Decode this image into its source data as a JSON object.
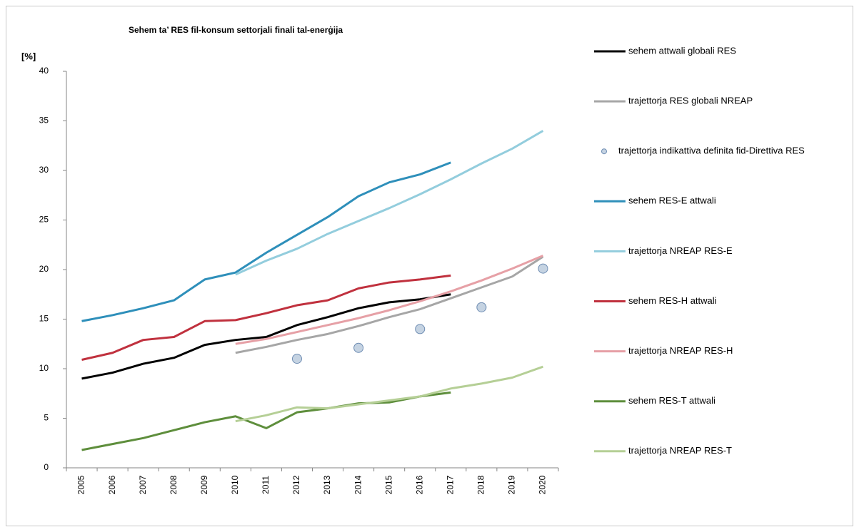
{
  "chart_data": {
    "type": "line",
    "title": "Sehem ta’ RES fil-konsum settorjali finali tal-enerġija",
    "y_label": "[%]",
    "categories": [
      "2005",
      "2006",
      "2007",
      "2008",
      "2009",
      "2010",
      "2011",
      "2012",
      "2013",
      "2014",
      "2015",
      "2016",
      "2017",
      "2018",
      "2019",
      "2020"
    ],
    "ylim": [
      0,
      40
    ],
    "yticks": [
      0,
      5,
      10,
      15,
      20,
      25,
      30,
      35,
      40
    ],
    "grid": false,
    "legend": "right",
    "series": [
      {
        "name": "sehem attwali globali RES",
        "color": "#000000",
        "mode": "lines",
        "values": [
          9.0,
          9.6,
          10.5,
          11.1,
          12.4,
          12.9,
          13.2,
          14.4,
          15.2,
          16.1,
          16.7,
          17.0,
          17.5,
          null,
          null,
          null
        ]
      },
      {
        "name": "trajettorja RES globali NREAP",
        "color": "#a6a6a6",
        "mode": "lines",
        "values": [
          null,
          null,
          null,
          null,
          null,
          11.6,
          12.2,
          12.9,
          13.5,
          14.3,
          15.2,
          16.0,
          17.1,
          18.2,
          19.3,
          21.3
        ]
      },
      {
        "name": "trajettorja indikattiva definita fid-Direttiva RES",
        "color": "#c5d3e2",
        "mode": "markers",
        "values": [
          null,
          null,
          null,
          null,
          null,
          null,
          null,
          11.0,
          null,
          12.1,
          null,
          14.0,
          null,
          16.2,
          null,
          20.1
        ]
      },
      {
        "name": "sehem RES-E attwali",
        "color": "#2e8fba",
        "mode": "lines",
        "values": [
          14.8,
          15.4,
          16.1,
          16.9,
          19.0,
          19.7,
          21.7,
          23.5,
          25.3,
          27.4,
          28.8,
          29.6,
          30.8,
          null,
          null,
          null
        ]
      },
      {
        "name": "trajettorja NREAP RES-E",
        "color": "#93cddd",
        "mode": "lines",
        "values": [
          null,
          null,
          null,
          null,
          null,
          19.5,
          20.9,
          22.1,
          23.6,
          24.9,
          26.2,
          27.6,
          29.1,
          30.7,
          32.2,
          34.0
        ]
      },
      {
        "name": "sehem RES-H attwali",
        "color": "#c0313e",
        "mode": "lines",
        "values": [
          10.9,
          11.6,
          12.9,
          13.2,
          14.8,
          14.9,
          15.6,
          16.4,
          16.9,
          18.1,
          18.7,
          19.0,
          19.4,
          null,
          null,
          null
        ]
      },
      {
        "name": "trajettorja NREAP RES-H",
        "color": "#e6a0a6",
        "mode": "lines",
        "values": [
          null,
          null,
          null,
          null,
          null,
          12.5,
          13.0,
          13.7,
          14.4,
          15.1,
          15.9,
          16.8,
          17.8,
          18.9,
          20.1,
          21.4
        ]
      },
      {
        "name": "sehem RES-T attwali",
        "color": "#5e8e3c",
        "mode": "lines",
        "values": [
          1.8,
          2.4,
          3.0,
          3.8,
          4.6,
          5.2,
          4.0,
          5.6,
          6.0,
          6.5,
          6.6,
          7.2,
          7.6,
          null,
          null,
          null
        ]
      },
      {
        "name": "trajettorja NREAP RES-T",
        "color": "#b5cf96",
        "mode": "lines",
        "values": [
          null,
          null,
          null,
          null,
          null,
          4.7,
          5.3,
          6.1,
          6.0,
          6.4,
          6.8,
          7.2,
          8.0,
          8.5,
          9.1,
          10.2
        ]
      }
    ]
  }
}
